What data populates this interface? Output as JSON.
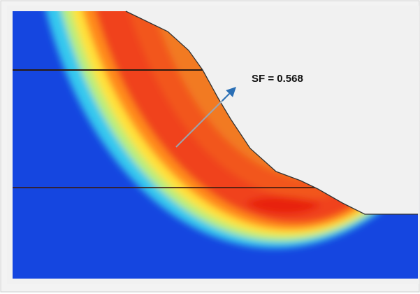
{
  "annotation": {
    "label": "SF = 0.568"
  }
}
